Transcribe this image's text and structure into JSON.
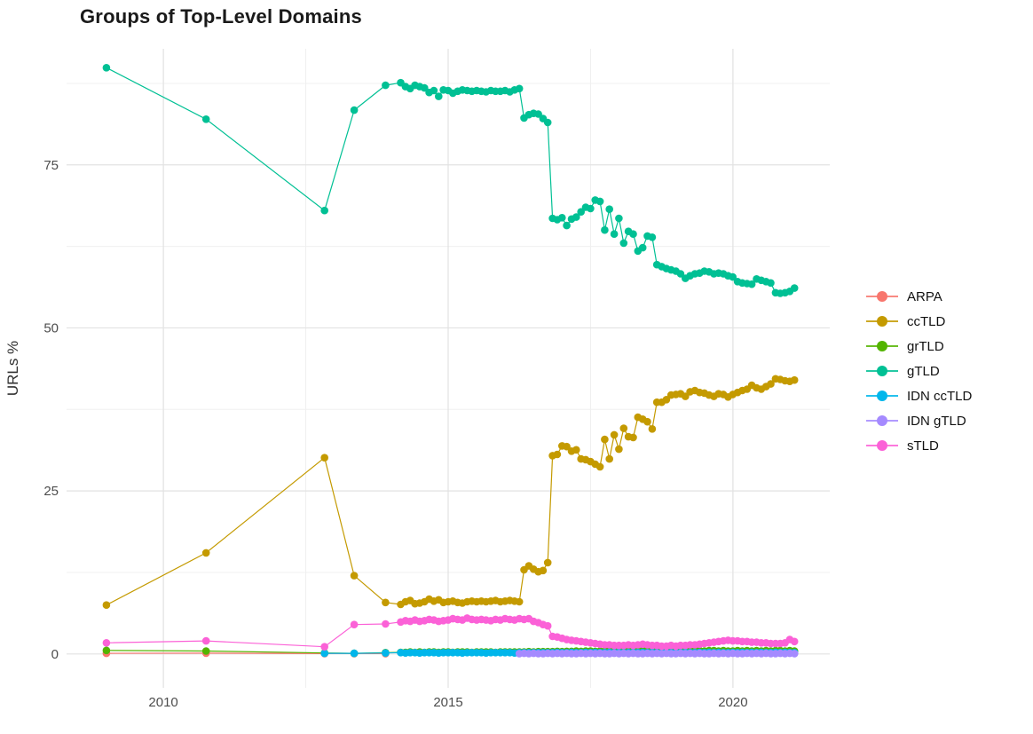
{
  "header": {
    "title": "Groups of Top-Level Domains"
  },
  "chart_data": {
    "type": "line",
    "title": "Groups of Top-Level Domains",
    "xlabel": "",
    "ylabel": "URLs %",
    "x_ticks": [
      2010,
      2015,
      2020
    ],
    "x_minor_ticks": [
      2012.5,
      2017.5
    ],
    "y_ticks": [
      0,
      25,
      50,
      75
    ],
    "y_minor_ticks": [
      12.5,
      37.5,
      62.5,
      87.5
    ],
    "x_domain": [
      2008.3,
      2021.7
    ],
    "y_domain": [
      -5.2,
      92.8
    ],
    "grid": "on",
    "legend_position": "right",
    "colors": {
      "major_grid": "#e2e2e2",
      "minor_grid": "#f0f0f0",
      "tick_label": "#4d4d4d",
      "title": "#1a1a1a",
      "axis_title": "#303030"
    },
    "series": [
      {
        "name": "ARPA",
        "color": "#F8766D",
        "points": [
          [
            2009,
            0.1
          ],
          [
            2010.75,
            0.12
          ],
          [
            2012.83,
            0.05
          ],
          [
            2013.35,
            0.05
          ],
          [
            2013.9,
            0.05
          ]
        ]
      },
      {
        "name": "ccTLD",
        "color": "#C49A00",
        "points": [
          [
            2009,
            7.5
          ],
          [
            2010.75,
            15.5
          ],
          [
            2012.83,
            30.1
          ],
          [
            2013.35,
            12.0
          ],
          [
            2013.9,
            7.9
          ]
        ],
        "dense": {
          "start": 2014.1667,
          "step": 0.0833,
          "values": [
            7.6,
            8.0,
            8.2,
            7.7,
            7.8,
            8.0,
            8.4,
            8.1,
            8.3,
            7.9,
            8.0,
            8.1,
            7.9,
            7.8,
            8.0,
            8.1,
            8.0,
            8.1,
            8.0,
            8.1,
            8.2,
            8.0,
            8.1,
            8.2,
            8.1,
            8.0,
            12.9,
            13.5,
            13.0,
            12.6,
            12.8,
            14.0,
            30.4,
            30.6,
            31.9,
            31.8,
            31.1,
            31.3,
            29.9,
            29.8,
            29.5,
            29.1,
            28.7,
            32.9,
            29.9,
            33.6,
            31.4,
            34.6,
            33.3,
            33.2,
            36.3,
            36.0,
            35.6,
            34.5,
            38.6,
            38.6,
            39.0,
            39.7,
            39.8,
            39.9,
            39.5,
            40.2,
            40.4,
            40.1,
            40.0,
            39.7,
            39.5,
            39.9,
            39.8,
            39.4,
            39.8,
            40.1,
            40.4,
            40.6,
            41.2,
            40.8,
            40.6,
            41.0,
            41.4,
            42.2,
            42.1,
            41.9,
            41.8,
            42.0
          ]
        }
      },
      {
        "name": "grTLD",
        "color": "#53B400",
        "points": [
          [
            2009,
            0.55
          ],
          [
            2010.75,
            0.45
          ],
          [
            2012.83,
            0.15
          ],
          [
            2013.35,
            0.1
          ],
          [
            2013.9,
            0.2
          ]
        ],
        "dense": {
          "start": 2014.1667,
          "step": 0.0833,
          "values": [
            0.25,
            0.25,
            0.3,
            0.25,
            0.3,
            0.25,
            0.3,
            0.3,
            0.25,
            0.3,
            0.3,
            0.25,
            0.3,
            0.3,
            0.3,
            0.25,
            0.3,
            0.3,
            0.3,
            0.3,
            0.25,
            0.3,
            0.3,
            0.3,
            0.3,
            0.3,
            0.3,
            0.35,
            0.3,
            0.35,
            0.35,
            0.35,
            0.35,
            0.4,
            0.35,
            0.4,
            0.4,
            0.45,
            0.4,
            0.45,
            0.45,
            0.4,
            0.45,
            0.45,
            0.5,
            0.45,
            0.45,
            0.5,
            0.45,
            0.5,
            0.45,
            0.5,
            0.5,
            0.45,
            0.5,
            0.5,
            0.45,
            0.5,
            0.5,
            0.45,
            0.5,
            0.45,
            0.5,
            0.5,
            0.45,
            0.5,
            0.5,
            0.45,
            0.5,
            0.45,
            0.45,
            0.5,
            0.45,
            0.5,
            0.45,
            0.5,
            0.45,
            0.5,
            0.45,
            0.5,
            0.5,
            0.45,
            0.5,
            0.45
          ]
        }
      },
      {
        "name": "gTLD",
        "color": "#00C094",
        "points": [
          [
            2009,
            89.9
          ],
          [
            2010.75,
            82.0
          ],
          [
            2012.83,
            68.0
          ],
          [
            2013.35,
            83.4
          ],
          [
            2013.9,
            87.2
          ]
        ],
        "dense": {
          "start": 2014.1667,
          "step": 0.0833,
          "values": [
            87.6,
            87.0,
            86.7,
            87.2,
            87.0,
            86.8,
            86.1,
            86.4,
            85.5,
            86.5,
            86.4,
            86.0,
            86.3,
            86.5,
            86.4,
            86.3,
            86.4,
            86.3,
            86.2,
            86.4,
            86.3,
            86.3,
            86.4,
            86.2,
            86.5,
            86.7,
            82.2,
            82.7,
            82.9,
            82.8,
            82.1,
            81.5,
            66.8,
            66.6,
            66.9,
            65.7,
            66.7,
            67.0,
            67.8,
            68.5,
            68.3,
            69.6,
            69.4,
            65.0,
            68.2,
            64.4,
            66.8,
            63.0,
            64.8,
            64.4,
            61.8,
            62.3,
            64.1,
            63.9,
            59.7,
            59.4,
            59.1,
            58.9,
            58.7,
            58.3,
            57.6,
            58.0,
            58.3,
            58.4,
            58.7,
            58.6,
            58.3,
            58.4,
            58.3,
            58.0,
            57.8,
            57.1,
            56.9,
            56.8,
            56.7,
            57.5,
            57.3,
            57.1,
            56.9,
            55.4,
            55.3,
            55.4,
            55.6,
            56.1
          ]
        }
      },
      {
        "name": "IDN ccTLD",
        "color": "#00B6EB",
        "points": [
          [
            2012.83,
            0.1
          ],
          [
            2013.35,
            0.1
          ],
          [
            2013.9,
            0.15
          ]
        ],
        "dense": {
          "start": 2014.1667,
          "step": 0.0833,
          "values": [
            0.2,
            0.15,
            0.2,
            0.2,
            0.15,
            0.2,
            0.2,
            0.2,
            0.15,
            0.2,
            0.2,
            0.2,
            0.2,
            0.15,
            0.2,
            0.2,
            0.2,
            0.2,
            0.15,
            0.2,
            0.2,
            0.2,
            0.2,
            0.2,
            0.15,
            0.2,
            0.2,
            0.2,
            0.2,
            0.2,
            0.2,
            0.2,
            0.2,
            0.25,
            0.2,
            0.2,
            0.25,
            0.2,
            0.2,
            0.25,
            0.2,
            0.25,
            0.2,
            0.2,
            0.25,
            0.2,
            0.25,
            0.2,
            0.2,
            0.25,
            0.2,
            0.25,
            0.2,
            0.25,
            0.2,
            0.2,
            0.25,
            0.2,
            0.25,
            0.2,
            0.25,
            0.2,
            0.2,
            0.25,
            0.2,
            0.25,
            0.2,
            0.25,
            0.2,
            0.2,
            0.25,
            0.2,
            0.25,
            0.2,
            0.25,
            0.2,
            0.25,
            0.2,
            0.2,
            0.25,
            0.2,
            0.25,
            0.2,
            0.2
          ]
        }
      },
      {
        "name": "IDN gTLD",
        "color": "#A58AFF",
        "points": [],
        "dense": {
          "start": 2016.25,
          "step": 0.0833,
          "values": [
            0.05,
            0.1,
            0.05,
            0.1,
            0.05,
            0.05,
            0.1,
            0.05,
            0.1,
            0.05,
            0.1,
            0.05,
            0.05,
            0.1,
            0.05,
            0.1,
            0.05,
            0.1,
            0.05,
            0.05,
            0.1,
            0.05,
            0.1,
            0.05,
            0.1,
            0.05,
            0.05,
            0.1,
            0.05,
            0.1,
            0.05,
            0.1,
            0.05,
            0.05,
            0.1,
            0.05,
            0.1,
            0.05,
            0.1,
            0.05,
            0.05,
            0.1,
            0.05,
            0.1,
            0.05,
            0.1,
            0.05,
            0.05,
            0.1,
            0.05,
            0.1,
            0.05,
            0.1,
            0.05,
            0.05,
            0.1,
            0.05,
            0.1,
            0.05
          ]
        }
      },
      {
        "name": "sTLD",
        "color": "#FB61D7",
        "points": [
          [
            2009,
            1.7
          ],
          [
            2010.75,
            2.0
          ],
          [
            2012.83,
            1.1
          ],
          [
            2013.35,
            4.5
          ],
          [
            2013.9,
            4.6
          ]
        ],
        "dense": {
          "start": 2014.1667,
          "step": 0.0833,
          "values": [
            4.9,
            5.1,
            5.0,
            5.2,
            5.0,
            5.1,
            5.3,
            5.2,
            5.0,
            5.1,
            5.2,
            5.4,
            5.3,
            5.2,
            5.5,
            5.3,
            5.2,
            5.3,
            5.2,
            5.1,
            5.3,
            5.2,
            5.4,
            5.3,
            5.2,
            5.4,
            5.3,
            5.4,
            5.0,
            4.8,
            4.5,
            4.3,
            2.7,
            2.6,
            2.4,
            2.2,
            2.1,
            2.0,
            1.9,
            1.8,
            1.7,
            1.6,
            1.5,
            1.4,
            1.4,
            1.3,
            1.3,
            1.3,
            1.4,
            1.3,
            1.4,
            1.5,
            1.4,
            1.3,
            1.3,
            1.2,
            1.2,
            1.3,
            1.2,
            1.3,
            1.3,
            1.4,
            1.4,
            1.5,
            1.6,
            1.7,
            1.8,
            1.9,
            2.0,
            2.1,
            2.0,
            2.0,
            1.9,
            1.9,
            1.8,
            1.8,
            1.7,
            1.7,
            1.6,
            1.6,
            1.6,
            1.7,
            2.2,
            1.9
          ]
        }
      }
    ]
  }
}
